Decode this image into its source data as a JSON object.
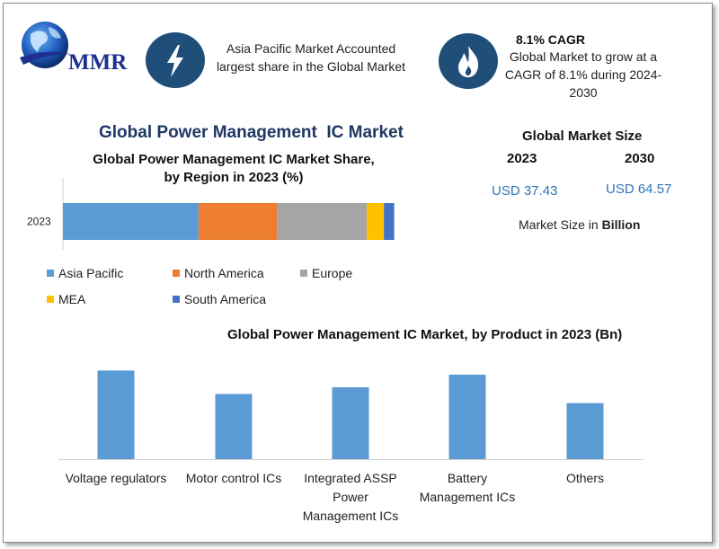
{
  "brand": {
    "logo_text": "MMR"
  },
  "highlights": [
    {
      "icon": "lightning-bolt-icon",
      "text": "Asia Pacific Market Accounted largest share in the Global Market"
    },
    {
      "icon": "flame-icon",
      "heading": "8.1% CAGR",
      "text": "Global Market to grow at a CAGR of 8.1% during 2024-2030"
    }
  ],
  "main_title": "Global Power Management  IC Market",
  "market_size": {
    "title": "Global Market Size",
    "year_start": "2023",
    "year_end": "2030",
    "value_start": "USD 37.43",
    "value_end": "USD 64.57",
    "note_prefix": "Market Size in ",
    "note_unit": "Billion"
  },
  "colors": {
    "asia_pacific": "#5b9bd5",
    "north_america": "#ed7d31",
    "europe": "#a5a5a5",
    "mea": "#ffc000",
    "south_america": "#4472c4",
    "product_bar": "#5b9bd5",
    "icon_circle": "#1f4e79"
  },
  "chart_data": [
    {
      "type": "bar",
      "orientation": "horizontal-stacked",
      "title": "Global Power Management IC Market Share, by Region in 2023 (%)",
      "title_lines": [
        "Global Power Management IC Market Share,",
        "by Region in 2023 (%)"
      ],
      "categories": [
        "2023"
      ],
      "series": [
        {
          "name": "Asia Pacific",
          "values": [
            39.5
          ]
        },
        {
          "name": "North America",
          "values": [
            23.0
          ]
        },
        {
          "name": "Europe",
          "values": [
            26.0
          ]
        },
        {
          "name": "MEA",
          "values": [
            5.0
          ]
        },
        {
          "name": "South America",
          "values": [
            3.0
          ]
        }
      ],
      "xlim": [
        0,
        100
      ],
      "legend_position": "bottom",
      "grid": false
    },
    {
      "type": "bar",
      "title": "Global Power Management IC Market, by Product in 2023 (Bn)",
      "categories": [
        "Voltage regulators",
        "Motor control ICs",
        "Integrated ASSP Power Management ICs",
        "Battery Management ICs",
        "Others"
      ],
      "category_lines": [
        [
          "Voltage regulators"
        ],
        [
          "Motor control ICs"
        ],
        [
          "Integrated ASSP",
          "Power",
          "Management ICs"
        ],
        [
          "Battery",
          "Management ICs"
        ],
        [
          "Others"
        ]
      ],
      "values": [
        10.6,
        7.8,
        8.6,
        10.1,
        6.7
      ],
      "ylim": [
        0,
        13
      ],
      "grid": false
    }
  ]
}
